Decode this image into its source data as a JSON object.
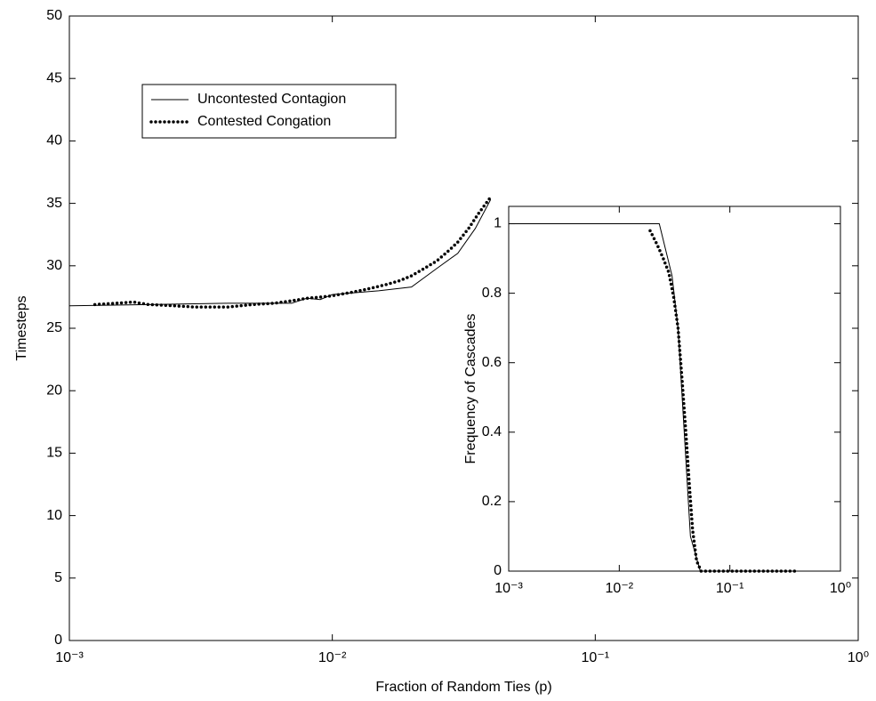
{
  "chart_data": [
    {
      "type": "line",
      "xscale": "log",
      "xlabel": "Fraction of Random Ties (p)",
      "ylabel": "Timesteps",
      "xlim": [
        0.001,
        1
      ],
      "ylim": [
        0,
        50
      ],
      "xticks": [
        {
          "value": 0.001,
          "label": "10⁻³"
        },
        {
          "value": 0.01,
          "label": "10⁻²"
        },
        {
          "value": 0.1,
          "label": "10⁻¹"
        },
        {
          "value": 1,
          "label": "10⁰"
        }
      ],
      "yticks": [
        0,
        5,
        10,
        15,
        20,
        25,
        30,
        35,
        40,
        45,
        50
      ],
      "legend": "upper left",
      "series": [
        {
          "name": "Uncontested Contagion",
          "color": "#000000",
          "style": "solid",
          "x": [
            0.001,
            0.002,
            0.004,
            0.007,
            0.008,
            0.009,
            0.01,
            0.015,
            0.02,
            0.025,
            0.03,
            0.035,
            0.04
          ],
          "values": [
            26.8,
            26.9,
            27.0,
            27.0,
            27.4,
            27.3,
            27.7,
            28.0,
            28.3,
            29.8,
            31.0,
            33.0,
            35.3
          ]
        },
        {
          "name": "Contested Congation",
          "color": "#000000",
          "style": "dotted",
          "x": [
            0.00125,
            0.0015,
            0.00175,
            0.002,
            0.0025,
            0.003,
            0.0035,
            0.004,
            0.005,
            0.006,
            0.007,
            0.008,
            0.009,
            0.01,
            0.012,
            0.014,
            0.016,
            0.018,
            0.02,
            0.022,
            0.025,
            0.028,
            0.03,
            0.033,
            0.036,
            0.04
          ],
          "values": [
            26.9,
            27.0,
            27.1,
            26.9,
            26.8,
            26.7,
            26.7,
            26.7,
            26.9,
            27.0,
            27.2,
            27.4,
            27.5,
            27.6,
            27.9,
            28.2,
            28.5,
            28.8,
            29.2,
            29.7,
            30.4,
            31.3,
            31.9,
            33.0,
            34.2,
            35.5
          ]
        }
      ]
    },
    {
      "type": "line",
      "xscale": "log",
      "ylabel": "Frequency of Cascades",
      "xlim": [
        0.001,
        1
      ],
      "ylim": [
        0,
        1.05
      ],
      "xticks": [
        {
          "value": 0.001,
          "label": "10⁻³"
        },
        {
          "value": 0.01,
          "label": "10⁻²"
        },
        {
          "value": 0.1,
          "label": "10⁻¹"
        },
        {
          "value": 1,
          "label": "10⁰"
        }
      ],
      "yticks": [
        0,
        0.2,
        0.4,
        0.6,
        0.8,
        1
      ],
      "series": [
        {
          "color": "#000000",
          "style": "solid",
          "x": [
            0.001,
            0.023,
            0.03,
            0.034,
            0.044,
            0.054,
            1
          ],
          "values": [
            1,
            1,
            0.85,
            0.7,
            0.1,
            0,
            0
          ]
        },
        {
          "color": "#000000",
          "style": "dotted",
          "x": [
            0.019,
            0.022,
            0.025,
            0.028,
            0.031,
            0.034,
            0.037,
            0.04,
            0.043,
            0.046,
            0.05,
            0.055,
            0.2,
            0.4
          ],
          "values": [
            0.98,
            0.94,
            0.9,
            0.86,
            0.79,
            0.7,
            0.55,
            0.4,
            0.25,
            0.12,
            0.03,
            0,
            0,
            0
          ]
        }
      ]
    }
  ]
}
